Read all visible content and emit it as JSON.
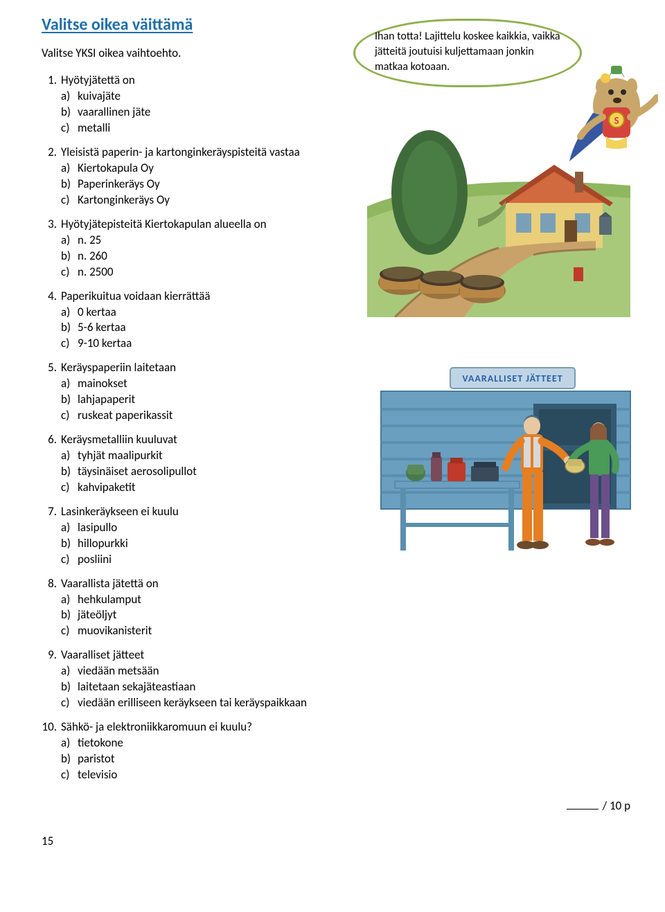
{
  "title": "Valitse oikea väittämä",
  "intro": "Valitse YKSI oikea vaihtoehto.",
  "speech": "Ihan totta! Lajittelu koskee kaikkia, vaikka jätteitä joutuisi kuljettamaan jonkin matkaa kotoaan.",
  "questions": [
    {
      "n": "1.",
      "q": "Hyötyjätettä on",
      "opts": [
        {
          "l": "a)",
          "t": "kuivajäte"
        },
        {
          "l": "b)",
          "t": "vaarallinen jäte"
        },
        {
          "l": "c)",
          "t": "metalli"
        }
      ]
    },
    {
      "n": "2.",
      "q": "Yleisistä paperin- ja kartonginkeräyspisteitä vastaa",
      "opts": [
        {
          "l": "a)",
          "t": "Kiertokapula Oy"
        },
        {
          "l": "b)",
          "t": "Paperinkeräys Oy"
        },
        {
          "l": "c)",
          "t": "Kartonginkeräys Oy"
        }
      ]
    },
    {
      "n": "3.",
      "q": "Hyötyjätepisteitä Kiertokapulan alueella on",
      "opts": [
        {
          "l": "a)",
          "t": "n. 25"
        },
        {
          "l": "b)",
          "t": "n. 260"
        },
        {
          "l": "c)",
          "t": "n. 2500"
        }
      ]
    },
    {
      "n": "4.",
      "q": "Paperikuitua voidaan kierrättää",
      "opts": [
        {
          "l": "a)",
          "t": "0 kertaa"
        },
        {
          "l": "b)",
          "t": "5-6 kertaa"
        },
        {
          "l": "c)",
          "t": "9-10 kertaa"
        }
      ]
    },
    {
      "n": "5.",
      "q": "Keräyspaperiin laitetaan",
      "opts": [
        {
          "l": "a)",
          "t": "mainokset"
        },
        {
          "l": "b)",
          "t": "lahjapaperit"
        },
        {
          "l": "c)",
          "t": "ruskeat paperikassit"
        }
      ]
    },
    {
      "n": "6.",
      "q": "Keräysmetalliin kuuluvat",
      "opts": [
        {
          "l": "a)",
          "t": "tyhjät maalipurkit"
        },
        {
          "l": "b)",
          "t": "täysinäiset aerosolipullot"
        },
        {
          "l": "c)",
          "t": "kahvipaketit"
        }
      ]
    },
    {
      "n": "7.",
      "q": "Lasinkeräykseen ei kuulu",
      "opts": [
        {
          "l": "a)",
          "t": "lasipullo"
        },
        {
          "l": "b)",
          "t": "hillopurkki"
        },
        {
          "l": "c)",
          "t": "posliini"
        }
      ]
    },
    {
      "n": "8.",
      "q": "Vaarallista jätettä on",
      "opts": [
        {
          "l": "a)",
          "t": "hehkulamput"
        },
        {
          "l": "b)",
          "t": "jäteöljyt"
        },
        {
          "l": "c)",
          "t": "muovikanisterit"
        }
      ]
    },
    {
      "n": "9.",
      "q": "Vaaralliset jätteet",
      "opts": [
        {
          "l": "a)",
          "t": "viedään metsään"
        },
        {
          "l": "b)",
          "t": "laitetaan sekajäteastiaan"
        },
        {
          "l": "c)",
          "t": "viedään erilliseen keräykseen tai keräyspaikkaan"
        }
      ]
    },
    {
      "n": "10.",
      "q": "Sähkö- ja elektroniikkaromuun ei kuulu?",
      "opts": [
        {
          "l": "a)",
          "t": "tietokone"
        },
        {
          "l": "b)",
          "t": "paristot"
        },
        {
          "l": "c)",
          "t": "televisio"
        }
      ]
    }
  ],
  "score_suffix": "/ 10 p",
  "page_number": "15",
  "sign_text": "VAARALLISET JÄTTEET",
  "colors": {
    "title": "#1f6fa8",
    "bubble_border": "#8fb04e",
    "grass": "#8fb760",
    "tree": "#3f6b3a",
    "roof": "#d16a3e",
    "wall": "#e9cf7a",
    "path": "#c9a26a",
    "bin": "#b88746",
    "container": "#6a9fc0",
    "container_dark": "#335a72",
    "sign_bg": "#bfd5e6",
    "sign_text": "#2a5fa4",
    "worker": "#e67e22",
    "woman_jacket": "#4a9a58",
    "woman_pants": "#6b4f8a",
    "cape": "#3558a0",
    "hat": "#5a9a4a",
    "fur": "#c9a76a"
  }
}
